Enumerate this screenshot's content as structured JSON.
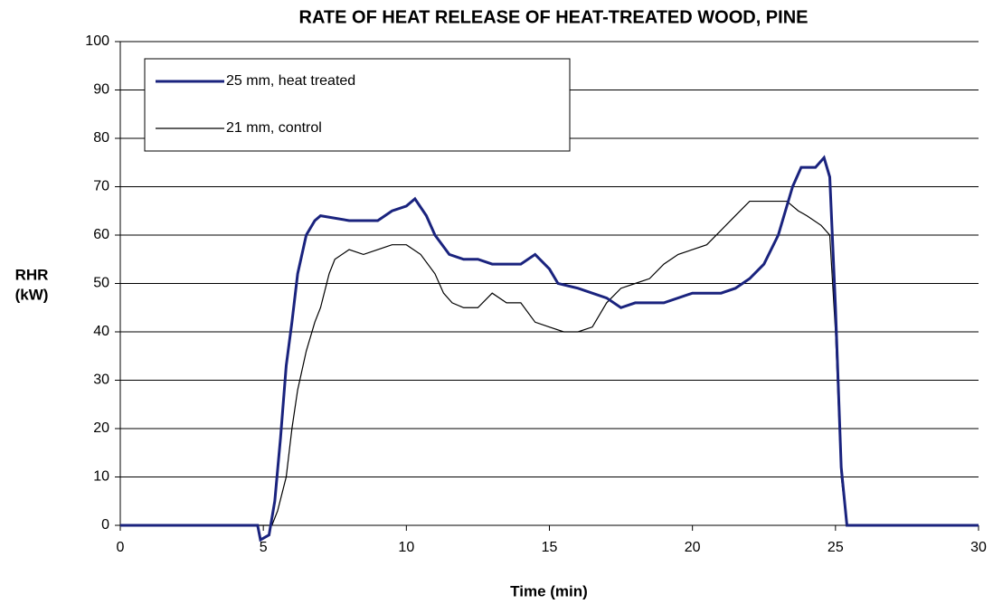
{
  "chart_data": {
    "type": "line",
    "title": "RATE OF HEAT RELEASE OF HEAT-TREATED WOOD, PINE",
    "xlabel": "Time (min)",
    "ylabel": [
      "RHR",
      "(kW)"
    ],
    "xlim": [
      0,
      30
    ],
    "xticks": [
      0,
      5,
      10,
      15,
      20,
      25,
      30
    ],
    "ylim": [
      0,
      100
    ],
    "yticks": [
      0,
      10,
      20,
      30,
      40,
      50,
      60,
      70,
      80,
      90,
      100
    ],
    "grid": true,
    "legend": "upper left",
    "series": [
      {
        "name": "25 mm, heat treated",
        "color": "#1a237e",
        "width": 3,
        "x": [
          0,
          4.8,
          4.9,
          5.2,
          5.4,
          5.6,
          5.8,
          6.0,
          6.2,
          6.5,
          6.8,
          7,
          8,
          9,
          9.5,
          10,
          10.3,
          10.7,
          11,
          11.5,
          12,
          12.5,
          13,
          14,
          14.5,
          15,
          15.3,
          16,
          17,
          17.5,
          18,
          19,
          20,
          21,
          21.5,
          22,
          22.5,
          23,
          23.5,
          23.8,
          24.3,
          24.6,
          24.8,
          25,
          25.2,
          25.4,
          30
        ],
        "values": [
          0,
          0,
          -3,
          -2,
          5,
          18,
          33,
          42,
          52,
          60,
          63,
          64,
          63,
          63,
          65,
          66,
          67.5,
          64,
          60,
          56,
          55,
          55,
          54,
          54,
          56,
          53,
          50,
          49,
          47,
          45,
          46,
          46,
          48,
          48,
          49,
          51,
          54,
          60,
          70,
          74,
          74,
          76,
          72,
          45,
          12,
          0,
          0
        ]
      },
      {
        "name": "21 mm, control",
        "color": "#000000",
        "width": 1.2,
        "x": [
          0,
          5,
          5.3,
          5.5,
          5.8,
          6.0,
          6.2,
          6.5,
          6.8,
          7.0,
          7.3,
          7.5,
          8,
          8.5,
          9,
          9.5,
          10,
          10.5,
          11,
          11.3,
          11.6,
          12,
          12.5,
          13,
          13.5,
          14,
          14.5,
          15,
          15.5,
          16,
          16.5,
          17,
          17.5,
          18,
          18.5,
          19,
          19.5,
          20,
          20.5,
          21,
          21.5,
          22,
          22.5,
          23,
          23.3,
          23.7,
          24,
          24.5,
          24.8,
          25,
          25.2,
          25.4,
          30
        ],
        "values": [
          0,
          0,
          0,
          3,
          10,
          20,
          28,
          36,
          42,
          45,
          52,
          55,
          57,
          56,
          57,
          58,
          58,
          56,
          52,
          48,
          46,
          45,
          45,
          48,
          46,
          46,
          42,
          41,
          40,
          40,
          41,
          46,
          49,
          50,
          51,
          54,
          56,
          57,
          58,
          61,
          64,
          67,
          67,
          67,
          67,
          65,
          64,
          62,
          60,
          40,
          10,
          0,
          0
        ]
      }
    ]
  }
}
